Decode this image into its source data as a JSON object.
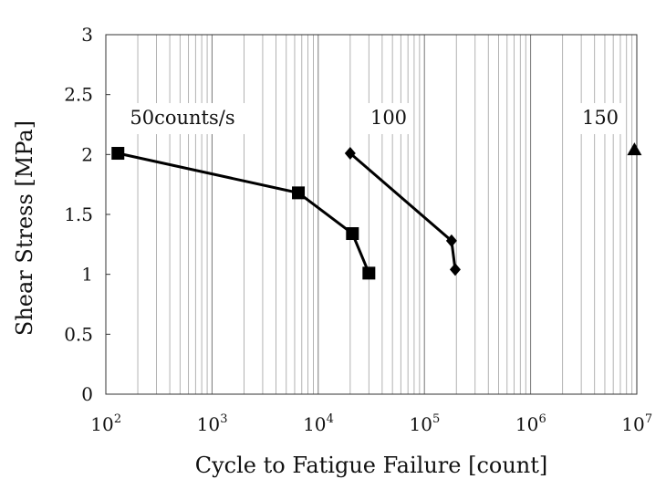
{
  "chart_data": {
    "type": "scatter",
    "title": "",
    "xlabel": "Cycle to Fatigue Failure [count]",
    "ylabel": "Shear Stress [MPa]",
    "x_scale": "log",
    "xlim": [
      100,
      10000000
    ],
    "ylim": [
      0,
      3
    ],
    "grid": {
      "x_major": true,
      "x_minor": true,
      "y": false
    },
    "x_ticks": [
      {
        "base": "10",
        "exp": "2"
      },
      {
        "base": "10",
        "exp": "3"
      },
      {
        "base": "10",
        "exp": "4"
      },
      {
        "base": "10",
        "exp": "5"
      },
      {
        "base": "10",
        "exp": "6"
      },
      {
        "base": "10",
        "exp": "7"
      }
    ],
    "y_ticks": [
      "0",
      "0.5",
      "1",
      "1.5",
      "2",
      "2.5",
      "3"
    ],
    "series": [
      {
        "annotation": "50counts/s",
        "marker": "square",
        "line": true,
        "x": [
          130,
          6500,
          21000,
          30000
        ],
        "y": [
          2.01,
          1.68,
          1.34,
          1.01
        ]
      },
      {
        "annotation": "100",
        "marker": "diamond",
        "line": true,
        "x": [
          20000,
          180000,
          195000
        ],
        "y": [
          2.01,
          1.28,
          1.04
        ]
      },
      {
        "annotation": "150",
        "marker": "triangle",
        "line": false,
        "x": [
          9500000
        ],
        "y": [
          2.04
        ]
      }
    ]
  }
}
